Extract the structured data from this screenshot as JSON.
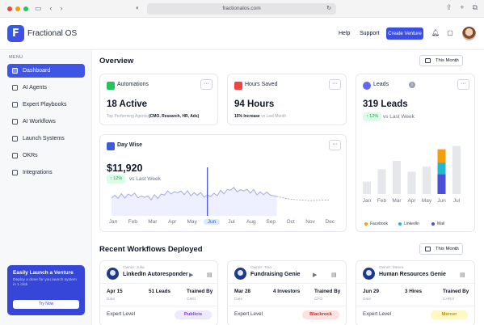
{
  "browser": {
    "url": "fractionalos.com"
  },
  "header": {
    "brand": "Fractional OS",
    "logo_letter": "F",
    "nav": [
      "Help",
      "Support"
    ],
    "cta": "Create Venture"
  },
  "sidebar": {
    "menu_label": "MENU",
    "items": [
      {
        "label": "Dashboard",
        "active": true
      },
      {
        "label": "AI Agents"
      },
      {
        "label": "Expert Playbooks"
      },
      {
        "label": "AI Workflows"
      },
      {
        "label": "Launch Systems"
      },
      {
        "label": "OKRs"
      },
      {
        "label": "Integrations"
      }
    ],
    "promo": {
      "title": "Easily Launch a Venture",
      "desc": "Deploy a done for you launch system in 1 click",
      "button": "Try Now"
    }
  },
  "overview": {
    "title": "Overview",
    "period": "This Month",
    "automations": {
      "title": "Automations",
      "value": "18 Active",
      "sub_prefix": "Top Performing Agents ",
      "sub_bold": "(CMO, Research, HR, Ads)"
    },
    "hours": {
      "title": "Hours Saved",
      "value": "94 Hours",
      "sub_bold": "15% Increase",
      "sub_suffix": " vs Last Month"
    },
    "daywise": {
      "title": "Day Wise",
      "value": "$11,920",
      "badge": "↑ 12%",
      "vs": "vs Last Week"
    },
    "leads": {
      "title": "Leads",
      "info": "i",
      "value": "319 Leads",
      "badge": "↑ 12%",
      "vs": "vs Last Week"
    }
  },
  "chart_data": [
    {
      "type": "line",
      "title": "Day Wise",
      "categories": [
        "Jan",
        "Feb",
        "Mar",
        "Apr",
        "May",
        "Jun",
        "Jul",
        "Aug",
        "Sep",
        "Oct",
        "Nov",
        "Dec"
      ],
      "highlight": "Jun",
      "values": [
        13,
        15,
        12.5,
        17,
        16,
        14,
        19,
        17.5,
        15,
        12,
        11,
        11.5
      ],
      "ylim": [
        0,
        35
      ]
    },
    {
      "type": "bar",
      "title": "Leads",
      "categories": [
        "Jan",
        "Feb",
        "Mar",
        "Apr",
        "May",
        "Jun",
        "Jul"
      ],
      "series": [
        {
          "name": "Facebook",
          "color": "#f59e0b",
          "values": [
            0,
            0,
            0,
            0,
            0,
            16,
            0
          ]
        },
        {
          "name": "LinkedIn",
          "color": "#22b8cf",
          "values": [
            0,
            0,
            0,
            0,
            0,
            14,
            0
          ]
        },
        {
          "name": "Mail",
          "color": "#4c4fd7",
          "values": [
            15,
            30,
            40,
            27,
            33,
            24,
            58
          ]
        }
      ],
      "ylim": [
        0,
        80
      ]
    }
  ],
  "workflows": {
    "title": "Recent Workflows Deployed",
    "period": "This Month",
    "level_label": "Expert Level",
    "cards": [
      {
        "owner": "Owner: Julia",
        "name": "LinkedIn Autoresponder",
        "date": "Apr 15",
        "date_lbl": "Date",
        "metric": "51 Leads",
        "trained_lbl": "Trained By",
        "trained": "CMO",
        "level": "Publicis",
        "level_bg": "#ede9fe",
        "level_fg": "#7c3aed"
      },
      {
        "owner": "Owner: Tina",
        "name": "Fundraising Genie",
        "date": "Mar 28",
        "date_lbl": "Date",
        "metric": "4 Investors",
        "trained_lbl": "Trained By",
        "trained": "CFO",
        "level": "Blackrock",
        "level_bg": "#fee2e2",
        "level_fg": "#dc2626"
      },
      {
        "owner": "Owner: Meera",
        "name": "Human Resources Genie",
        "date": "Jun 29",
        "date_lbl": "Date",
        "metric": "3 Hires",
        "trained_lbl": "Trained By",
        "trained": "CHRO",
        "level": "Mercer",
        "level_bg": "#fef9c3",
        "level_fg": "#ca8a04"
      }
    ]
  }
}
